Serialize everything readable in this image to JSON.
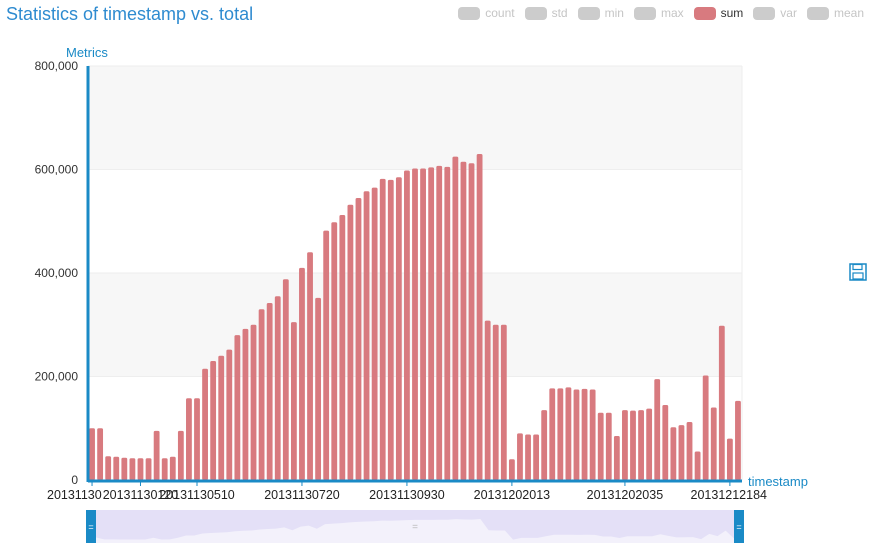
{
  "title": "Statistics of timestamp vs. total",
  "legend": [
    {
      "label": "count",
      "active": false
    },
    {
      "label": "std",
      "active": false
    },
    {
      "label": "min",
      "active": false
    },
    {
      "label": "max",
      "active": false
    },
    {
      "label": "sum",
      "active": true
    },
    {
      "label": "var",
      "active": false
    },
    {
      "label": "mean",
      "active": false
    }
  ],
  "colors": {
    "accent": "#1a8ac6",
    "bar": "#d87a7f",
    "inactive": "#cccccc",
    "zoom_fill": "#e4e0f7",
    "zoom_handle": "#1a8ac6"
  },
  "toolbar": {
    "save_icon": "save-icon"
  },
  "chart_data": {
    "type": "bar",
    "xlabel": "timestamp",
    "ylabel": "Metrics",
    "ylim": [
      0,
      800000
    ],
    "yticks": [
      0,
      200000,
      400000,
      600000,
      800000
    ],
    "ytick_labels": [
      "0",
      "200,000",
      "400,000",
      "600,000",
      "800,000"
    ],
    "xtick_labels": [
      "20131130",
      "20131130120",
      "20131130510",
      "20131130720",
      "20131130930",
      "20131202013",
      "20131202035",
      "20131212184"
    ],
    "xtick_indices": [
      0,
      6,
      13,
      26,
      39,
      52,
      66,
      79
    ],
    "grid": true,
    "series": [
      {
        "name": "sum",
        "values": [
          100000,
          100000,
          46000,
          45000,
          43000,
          42000,
          42000,
          42000,
          95000,
          42000,
          45000,
          95000,
          158000,
          158000,
          215000,
          230000,
          240000,
          252000,
          280000,
          292000,
          300000,
          330000,
          342000,
          355000,
          388000,
          305000,
          410000,
          440000,
          352000,
          482000,
          498000,
          512000,
          532000,
          545000,
          558000,
          565000,
          582000,
          580000,
          585000,
          598000,
          602000,
          602000,
          604000,
          607000,
          605000,
          625000,
          615000,
          612000,
          630000,
          308000,
          300000,
          300000,
          40000,
          90000,
          88000,
          88000,
          135000,
          177000,
          177000,
          179000,
          175000,
          176000,
          175000,
          130000,
          130000,
          85000,
          135000,
          134000,
          135000,
          138000,
          195000,
          145000,
          102000,
          106000,
          112000,
          55000,
          202000,
          140000,
          298000,
          80000,
          153000
        ]
      }
    ]
  }
}
